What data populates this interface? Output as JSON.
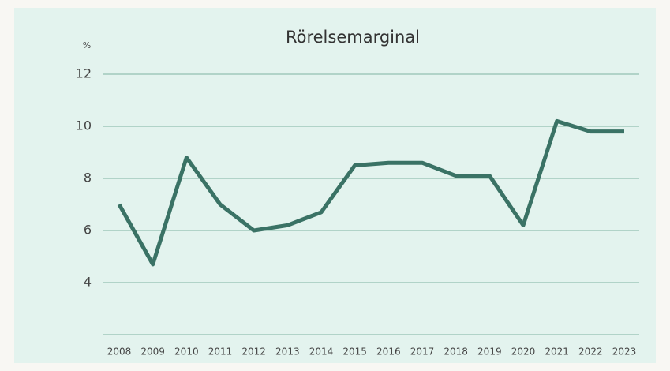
{
  "chart_data": {
    "type": "line",
    "title": "Rörelsemarginal",
    "y_label": "%",
    "categories": [
      "2008",
      "2009",
      "2010",
      "2011",
      "2012",
      "2013",
      "2014",
      "2015",
      "2016",
      "2017",
      "2018",
      "2019",
      "2020",
      "2021",
      "2022",
      "2023"
    ],
    "series": [
      {
        "name": "Rörelsemarginal",
        "color": "#3a7265",
        "values": [
          7.0,
          4.7,
          8.8,
          7.0,
          6.0,
          6.2,
          6.7,
          8.5,
          8.6,
          8.6,
          8.1,
          8.1,
          6.2,
          10.2,
          9.8,
          9.8
        ]
      }
    ],
    "ylim": [
      2,
      12
    ],
    "yticks": [
      4,
      6,
      8,
      10,
      12
    ],
    "grid": true
  }
}
